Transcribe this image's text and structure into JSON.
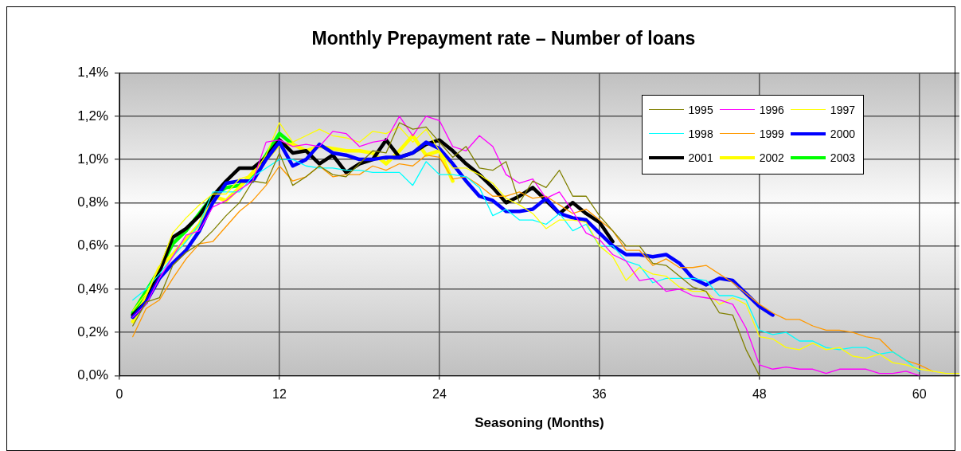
{
  "chart_data": {
    "type": "line",
    "title": "Monthly Prepayment rate – Number of loans",
    "xlabel": "Seasoning (Months)",
    "xlim": [
      0,
      63
    ],
    "xticks": [
      0,
      12,
      24,
      36,
      48,
      60
    ],
    "ylim": [
      0,
      1.4
    ],
    "yticks": [
      {
        "value": 0,
        "label": "0,0%"
      },
      {
        "value": 0.2,
        "label": "0,2%"
      },
      {
        "value": 0.4,
        "label": "0,4%"
      },
      {
        "value": 0.6,
        "label": "0,6%"
      },
      {
        "value": 0.8,
        "label": "0,8%"
      },
      {
        "value": 1.0,
        "label": "1,0%"
      },
      {
        "value": 1.2,
        "label": "1,2%"
      },
      {
        "value": 1.4,
        "label": "1,4%"
      }
    ],
    "grid": true,
    "legend": "top right",
    "marker": "none",
    "line_style": "solid",
    "series": [
      {
        "name": "1995",
        "color": "#808000",
        "x": [
          1,
          2,
          3,
          4,
          5,
          6,
          7,
          8,
          9,
          10,
          11,
          12,
          13,
          14,
          15,
          16,
          17,
          18,
          19,
          20,
          21,
          22,
          23,
          24,
          25,
          26,
          27,
          28,
          29,
          30,
          31,
          32,
          33,
          34,
          35,
          36,
          37,
          38,
          39,
          40,
          41,
          42,
          43,
          44,
          45,
          46,
          47,
          48
        ],
        "values": [
          0.23,
          0.34,
          0.36,
          0.51,
          0.57,
          0.61,
          0.67,
          0.74,
          0.8,
          0.9,
          0.89,
          1.03,
          0.88,
          0.92,
          0.97,
          0.93,
          0.92,
          0.98,
          1.04,
          1.03,
          1.17,
          1.14,
          1.15,
          1.08,
          1.01,
          1.06,
          0.96,
          0.95,
          0.99,
          0.8,
          0.9,
          0.87,
          0.95,
          0.83,
          0.83,
          0.74,
          0.67,
          0.6,
          0.6,
          0.52,
          0.51,
          0.46,
          0.41,
          0.39,
          0.29,
          0.28,
          0.12,
          0.0
        ]
      },
      {
        "name": "1996",
        "color": "#ff00ff",
        "x": [
          1,
          2,
          3,
          4,
          5,
          6,
          7,
          8,
          9,
          10,
          11,
          12,
          13,
          14,
          15,
          16,
          17,
          18,
          19,
          20,
          21,
          22,
          23,
          24,
          25,
          26,
          27,
          28,
          29,
          30,
          31,
          32,
          33,
          34,
          35,
          36,
          37,
          38,
          39,
          40,
          41,
          42,
          43,
          44,
          45,
          46,
          47,
          48,
          49,
          50,
          51,
          52,
          53,
          54,
          55,
          56,
          57,
          58,
          59,
          60
        ],
        "values": [
          0.27,
          0.33,
          0.45,
          0.55,
          0.65,
          0.67,
          0.78,
          0.81,
          0.86,
          0.9,
          1.08,
          1.09,
          1.06,
          1.07,
          1.06,
          1.13,
          1.12,
          1.06,
          1.08,
          1.09,
          1.2,
          1.11,
          1.2,
          1.18,
          1.06,
          1.04,
          1.11,
          1.06,
          0.93,
          0.89,
          0.91,
          0.82,
          0.85,
          0.76,
          0.66,
          0.63,
          0.56,
          0.53,
          0.44,
          0.45,
          0.39,
          0.4,
          0.37,
          0.36,
          0.35,
          0.33,
          0.22,
          0.05,
          0.03,
          0.04,
          0.03,
          0.03,
          0.01,
          0.03,
          0.03,
          0.03,
          0.01,
          0.01,
          0.02,
          0.0
        ]
      },
      {
        "name": "1997",
        "color": "#ffff00",
        "x": [
          1,
          2,
          3,
          4,
          5,
          6,
          7,
          8,
          9,
          10,
          11,
          12,
          13,
          14,
          15,
          16,
          17,
          18,
          19,
          20,
          21,
          22,
          23,
          24,
          25,
          26,
          27,
          28,
          29,
          30,
          31,
          32,
          33,
          34,
          35,
          36,
          37,
          38,
          39,
          40,
          41,
          42,
          43,
          44,
          45,
          46,
          47,
          48,
          49,
          50,
          51,
          52,
          53,
          54,
          55,
          56,
          57,
          58,
          59,
          60,
          61,
          62,
          63
        ],
        "values": [
          0.3,
          0.38,
          0.5,
          0.66,
          0.73,
          0.79,
          0.84,
          0.84,
          0.91,
          0.93,
          1.02,
          1.17,
          1.08,
          1.11,
          1.14,
          1.11,
          1.1,
          1.08,
          1.13,
          1.12,
          1.15,
          1.08,
          1.14,
          1.04,
          0.96,
          0.96,
          0.93,
          0.89,
          0.82,
          0.79,
          0.75,
          0.68,
          0.72,
          0.72,
          0.71,
          0.6,
          0.55,
          0.44,
          0.5,
          0.47,
          0.46,
          0.41,
          0.39,
          0.39,
          0.33,
          0.36,
          0.33,
          0.18,
          0.17,
          0.13,
          0.12,
          0.15,
          0.12,
          0.13,
          0.09,
          0.08,
          0.1,
          0.06,
          0.05,
          0.03,
          0.02,
          0.01,
          0.01
        ]
      },
      {
        "name": "1998",
        "color": "#00ffff",
        "x": [
          1,
          2,
          3,
          4,
          5,
          6,
          7,
          8,
          9,
          10,
          11,
          12,
          13,
          14,
          15,
          16,
          17,
          18,
          19,
          20,
          21,
          22,
          23,
          24,
          25,
          26,
          27,
          28,
          29,
          30,
          31,
          32,
          33,
          34,
          35,
          36,
          37,
          38,
          39,
          40,
          41,
          42,
          43,
          44,
          45,
          46,
          47,
          48,
          49,
          50,
          51,
          52,
          53,
          54,
          55,
          56,
          57,
          58,
          59,
          60
        ],
        "values": [
          0.35,
          0.4,
          0.47,
          0.55,
          0.62,
          0.7,
          0.85,
          0.85,
          0.85,
          0.92,
          0.96,
          1.0,
          1.0,
          0.97,
          0.96,
          0.96,
          0.95,
          0.95,
          0.94,
          0.94,
          0.94,
          0.88,
          0.99,
          0.93,
          0.93,
          0.92,
          0.87,
          0.74,
          0.77,
          0.72,
          0.72,
          0.7,
          0.75,
          0.67,
          0.7,
          0.6,
          0.6,
          0.53,
          0.51,
          0.43,
          0.45,
          0.45,
          0.45,
          0.44,
          0.37,
          0.37,
          0.35,
          0.21,
          0.19,
          0.2,
          0.16,
          0.16,
          0.13,
          0.12,
          0.13,
          0.13,
          0.1,
          0.11,
          0.07,
          0.02
        ]
      },
      {
        "name": "1999",
        "color": "#ff9900",
        "x": [
          1,
          2,
          3,
          4,
          5,
          6,
          7,
          8,
          9,
          10,
          11,
          12,
          13,
          14,
          15,
          16,
          17,
          18,
          19,
          20,
          21,
          22,
          23,
          24,
          25,
          26,
          27,
          28,
          29,
          30,
          31,
          32,
          33,
          34,
          35,
          36,
          37,
          38,
          39,
          40,
          41,
          42,
          43,
          44,
          45,
          46,
          47,
          48,
          49,
          50,
          51,
          52,
          53,
          54,
          55,
          56,
          57,
          58,
          59,
          60,
          61
        ],
        "values": [
          0.18,
          0.31,
          0.35,
          0.45,
          0.54,
          0.61,
          0.62,
          0.69,
          0.76,
          0.81,
          0.88,
          0.97,
          0.9,
          0.92,
          0.97,
          0.92,
          0.93,
          0.93,
          0.97,
          0.95,
          0.98,
          0.97,
          1.02,
          1.01,
          0.91,
          0.92,
          0.88,
          0.83,
          0.83,
          0.85,
          0.82,
          0.83,
          0.79,
          0.75,
          0.77,
          0.72,
          0.67,
          0.58,
          0.58,
          0.51,
          0.54,
          0.5,
          0.5,
          0.51,
          0.47,
          0.43,
          0.38,
          0.33,
          0.29,
          0.26,
          0.26,
          0.23,
          0.21,
          0.21,
          0.2,
          0.18,
          0.17,
          0.11,
          0.07,
          0.05,
          0.02
        ]
      },
      {
        "name": "2000",
        "color": "#0000ff",
        "x": [
          1,
          2,
          3,
          4,
          5,
          6,
          7,
          8,
          9,
          10,
          11,
          12,
          13,
          14,
          15,
          16,
          17,
          18,
          19,
          20,
          21,
          22,
          23,
          24,
          25,
          26,
          27,
          28,
          29,
          30,
          31,
          32,
          33,
          34,
          35,
          36,
          37,
          38,
          39,
          40,
          41,
          42,
          43,
          44,
          45,
          46,
          47,
          48,
          49
        ],
        "values": [
          0.27,
          0.34,
          0.45,
          0.52,
          0.58,
          0.67,
          0.8,
          0.89,
          0.9,
          0.9,
          1.0,
          1.08,
          0.97,
          1.0,
          1.07,
          1.03,
          1.02,
          1.0,
          1.0,
          1.01,
          1.01,
          1.03,
          1.08,
          1.05,
          0.98,
          0.9,
          0.83,
          0.81,
          0.76,
          0.76,
          0.77,
          0.82,
          0.75,
          0.73,
          0.72,
          0.66,
          0.6,
          0.56,
          0.56,
          0.55,
          0.56,
          0.52,
          0.45,
          0.42,
          0.45,
          0.44,
          0.38,
          0.32,
          0.28
        ]
      },
      {
        "name": "2001",
        "color": "#000000",
        "x": [
          1,
          2,
          3,
          4,
          5,
          6,
          7,
          8,
          9,
          10,
          11,
          12,
          13,
          14,
          15,
          16,
          17,
          18,
          19,
          20,
          21,
          22,
          23,
          24,
          25,
          26,
          27,
          28,
          29,
          30,
          31,
          32,
          33,
          34,
          35,
          36,
          37
        ],
        "values": [
          0.28,
          0.34,
          0.48,
          0.64,
          0.68,
          0.74,
          0.83,
          0.9,
          0.96,
          0.96,
          1.01,
          1.09,
          1.03,
          1.04,
          0.98,
          1.02,
          0.94,
          0.98,
          1.0,
          1.09,
          1.01,
          1.03,
          1.07,
          1.09,
          1.04,
          0.98,
          0.93,
          0.87,
          0.8,
          0.83,
          0.87,
          0.81,
          0.75,
          0.8,
          0.75,
          0.71,
          0.62
        ]
      },
      {
        "name": "2002",
        "color": "#ffff00",
        "x": [
          1,
          2,
          3,
          4,
          5,
          6,
          7,
          8,
          9,
          10,
          11,
          12,
          13,
          14,
          15,
          16,
          17,
          18,
          19,
          20,
          21,
          22,
          23,
          24,
          25
        ],
        "values": [
          0.25,
          0.36,
          0.5,
          0.56,
          0.63,
          0.7,
          0.83,
          0.81,
          0.87,
          0.94,
          1.0,
          1.07,
          1.07,
          1.04,
          1.06,
          1.05,
          1.04,
          1.04,
          1.03,
          0.98,
          1.04,
          1.11,
          1.02,
          1.04,
          0.9
        ]
      },
      {
        "name": "2003",
        "color": "#00ff00",
        "x": [
          1,
          2,
          3,
          4,
          5,
          6,
          7,
          8,
          9,
          10,
          11,
          12,
          13
        ],
        "values": [
          0.29,
          0.39,
          0.49,
          0.61,
          0.67,
          0.75,
          0.83,
          0.87,
          0.88,
          0.93,
          1.02,
          1.12,
          1.07
        ]
      }
    ]
  }
}
